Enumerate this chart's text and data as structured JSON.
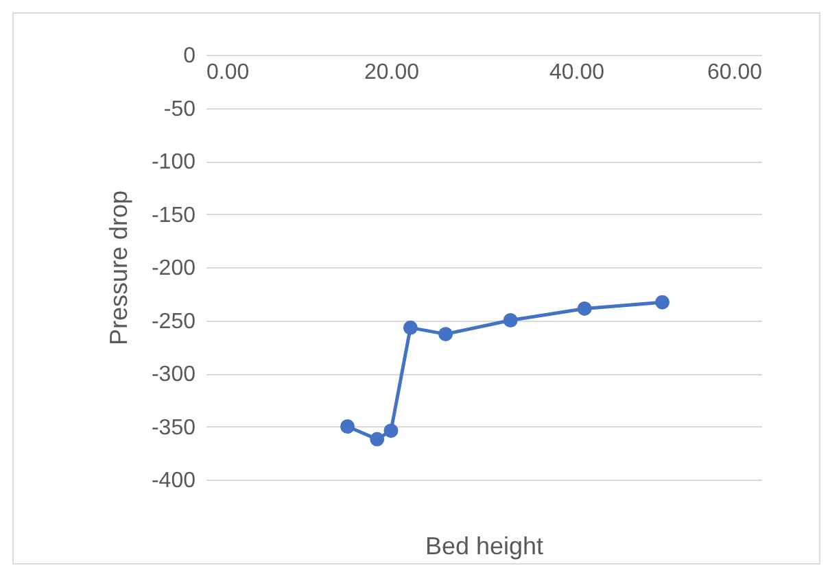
{
  "chart_data": {
    "type": "line",
    "xlabel": "Bed height",
    "ylabel": "Pressure drop",
    "x": [
      15.3,
      18.5,
      20.0,
      22.1,
      25.9,
      32.9,
      40.9,
      49.3
    ],
    "series": [
      {
        "color": "#4472c4",
        "values": [
          -350,
          -362,
          -354,
          -257,
          -263,
          -250,
          -239,
          -233
        ]
      }
    ],
    "xlim": [
      0,
      60
    ],
    "xticks": [
      {
        "value": 0,
        "label": "0.00"
      },
      {
        "value": 20,
        "label": "20.00"
      },
      {
        "value": 40,
        "label": "40.00"
      },
      {
        "value": 60,
        "label": "60.00"
      }
    ],
    "ylim": [
      -400,
      0
    ],
    "yticks": [
      -400,
      -350,
      -300,
      -250,
      -200,
      -150,
      -100,
      -50,
      0
    ],
    "grid": "y",
    "marker": "circle",
    "line_style": "solid"
  }
}
